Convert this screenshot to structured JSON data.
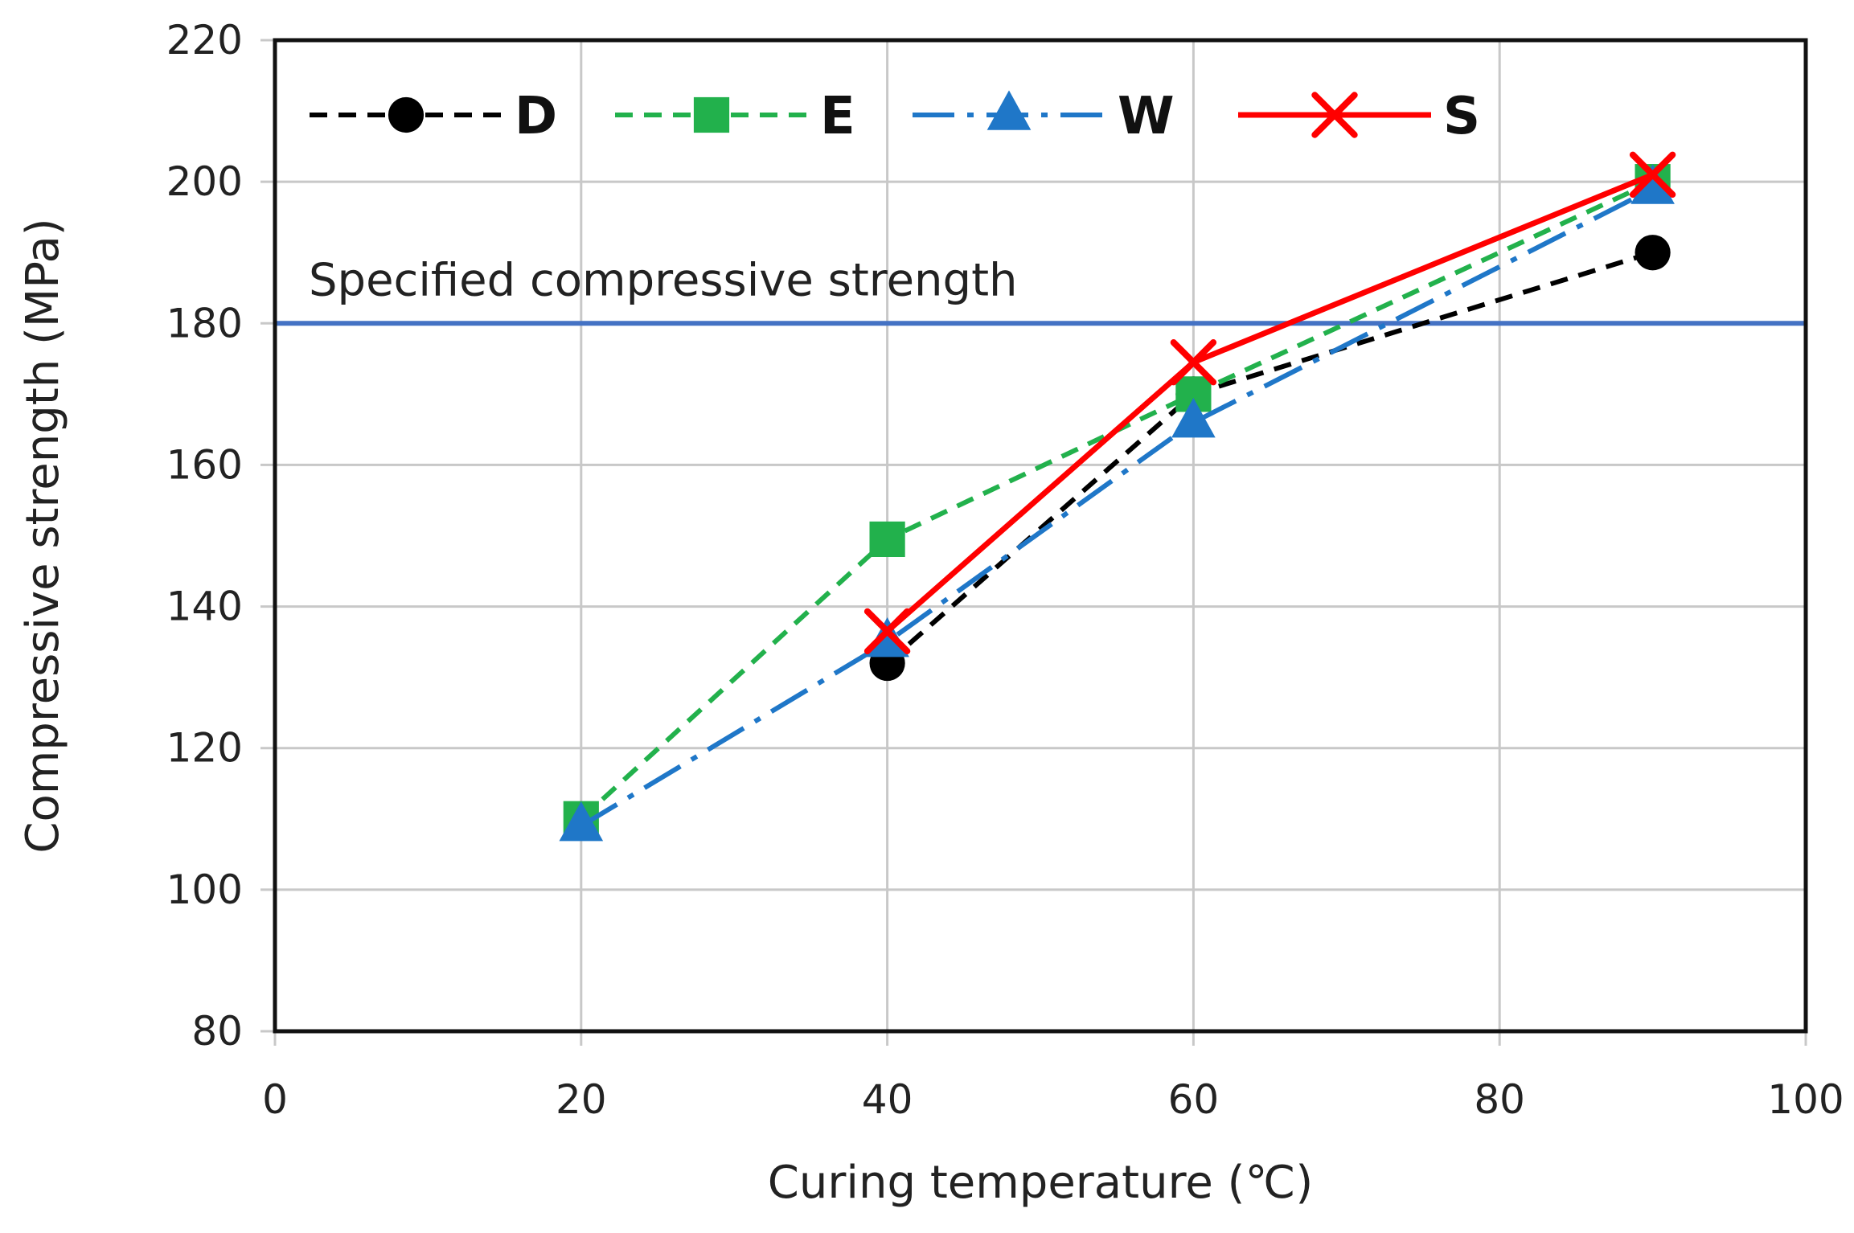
{
  "chart_data": {
    "type": "line",
    "title": "",
    "xlabel": "Curing temperature (℃)",
    "ylabel": "Compressive strength (MPa)",
    "xlim": [
      0,
      100
    ],
    "ylim": [
      80,
      220
    ],
    "xticks": [
      0,
      20,
      40,
      60,
      80,
      100
    ],
    "yticks": [
      80,
      100,
      120,
      140,
      160,
      180,
      200,
      220
    ],
    "grid": true,
    "legend_position": "top",
    "reference_line": {
      "label": "Specified compressive strength",
      "value": 180,
      "color": "#4472c4"
    },
    "series": [
      {
        "name": "D",
        "color": "#000000",
        "marker": "circle",
        "dash": "dashed",
        "x": [
          40,
          60,
          90
        ],
        "y": [
          132,
          170,
          190
        ]
      },
      {
        "name": "E",
        "color": "#22b14c",
        "marker": "square",
        "dash": "dashed",
        "x": [
          20,
          40,
          60,
          90
        ],
        "y": [
          110,
          149.5,
          170,
          200
        ]
      },
      {
        "name": "W",
        "color": "#1f77c8",
        "marker": "triangle",
        "dash": "long-dash",
        "x": [
          20,
          40,
          60,
          90
        ],
        "y": [
          109,
          135,
          166,
          199
        ]
      },
      {
        "name": "S",
        "color": "#ff0000",
        "marker": "x",
        "dash": "solid",
        "x": [
          40,
          60,
          90
        ],
        "y": [
          136.5,
          174.5,
          201
        ]
      }
    ]
  }
}
